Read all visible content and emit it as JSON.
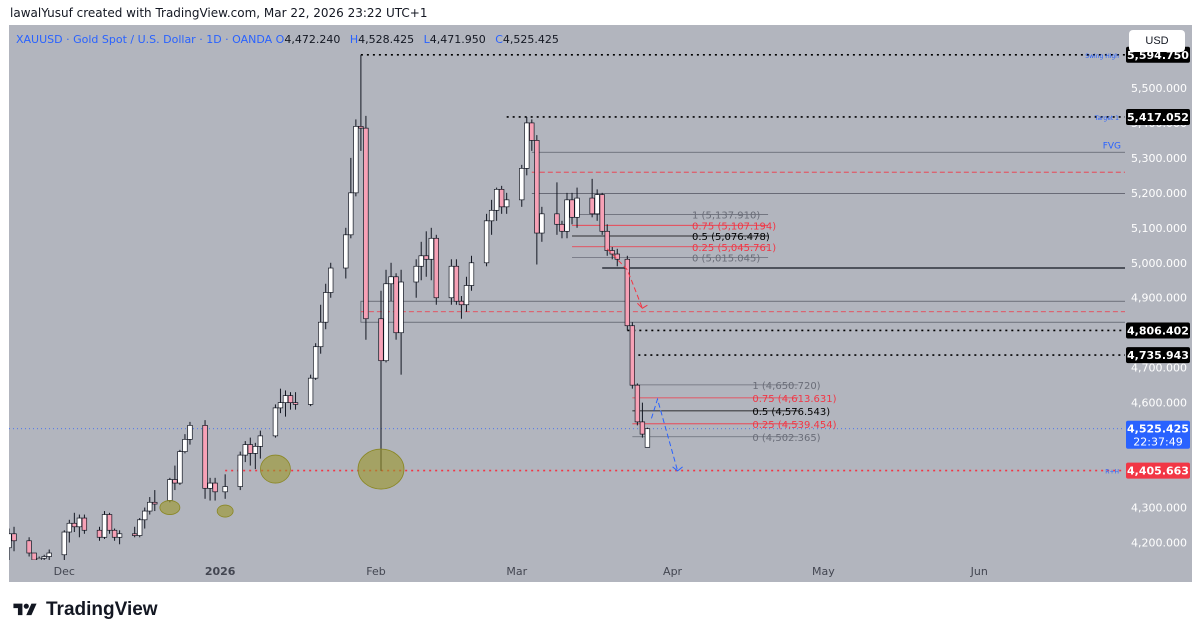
{
  "caption": "lawalYusuf created with TradingView.com, Mar 22, 2026 23:22 UTC+1",
  "legend": {
    "symbol": "XAUUSD · Gold Spot / U.S. Dollar · 1D · OANDA",
    "o_label": "O",
    "o_value": "4,472.240",
    "h_label": "H",
    "h_value": "4,528.425",
    "l_label": "L",
    "l_value": "4,471.950",
    "c_label": "C",
    "c_value": "4,525.425"
  },
  "currency_button": "USD",
  "brand": {
    "name": "TradingView",
    "logo_icon": "tradingview-logo-icon"
  },
  "colors": {
    "background": "#b2b5be",
    "up": "#ffffff",
    "down": "#f7a1b6",
    "wick": "#131722",
    "accent": "#2962ff",
    "red": "#f23645"
  },
  "chart_data": {
    "type": "candlestick",
    "symbol": "XAUUSD",
    "interval": "1D",
    "ylim": [
      4150,
      5680
    ],
    "y_ticks": [
      4200,
      4300,
      4400,
      4500,
      4600,
      4700,
      4800,
      4900,
      5000,
      5100,
      5200,
      5300,
      5400,
      5500
    ],
    "y_tick_labels": [
      "4,200.000",
      "4,300.000",
      "4,400.000",
      "4,500.000",
      "4,600.000",
      "4,700.000",
      "4,800.000",
      "4,900.000",
      "5,000.000",
      "5,100.000",
      "5,200.000",
      "5,300.000",
      "5,400.000",
      "5,500.000"
    ],
    "x_labels": [
      {
        "label": "Dec",
        "date": "2025-12-01"
      },
      {
        "label": "2026",
        "date": "2026-01-01"
      },
      {
        "label": "Feb",
        "date": "2026-02-01"
      },
      {
        "label": "Mar",
        "date": "2026-03-01"
      },
      {
        "label": "Apr",
        "date": "2026-04-01"
      },
      {
        "label": "May",
        "date": "2026-05-01"
      },
      {
        "label": "Jun",
        "date": "2026-06-01"
      }
    ],
    "x_range": [
      "2025-11-20",
      "2026-06-30"
    ],
    "candles": [
      {
        "d": "2025-11-20",
        "o": 4185,
        "h": 4240,
        "l": 4150,
        "c": 4225
      },
      {
        "d": "2025-11-21",
        "o": 4225,
        "h": 4245,
        "l": 4175,
        "c": 4205
      },
      {
        "d": "2025-11-24",
        "o": 4205,
        "h": 4215,
        "l": 4160,
        "c": 4170
      },
      {
        "d": "2025-11-25",
        "o": 4170,
        "h": 4165,
        "l": 4140,
        "c": 4150
      },
      {
        "d": "2025-11-26",
        "o": 4150,
        "h": 4160,
        "l": 4140,
        "c": 4155
      },
      {
        "d": "2025-11-27",
        "o": 4155,
        "h": 4165,
        "l": 4145,
        "c": 4160
      },
      {
        "d": "2025-11-28",
        "o": 4160,
        "h": 4180,
        "l": 4150,
        "c": 4170
      },
      {
        "d": "2025-12-01",
        "o": 4165,
        "h": 4235,
        "l": 4145,
        "c": 4230
      },
      {
        "d": "2025-12-02",
        "o": 4230,
        "h": 4265,
        "l": 4200,
        "c": 4255
      },
      {
        "d": "2025-12-03",
        "o": 4255,
        "h": 4285,
        "l": 4230,
        "c": 4245
      },
      {
        "d": "2025-12-04",
        "o": 4245,
        "h": 4280,
        "l": 4215,
        "c": 4270
      },
      {
        "d": "2025-12-05",
        "o": 4270,
        "h": 4280,
        "l": 4225,
        "c": 4235
      },
      {
        "d": "2025-12-08",
        "o": 4235,
        "h": 4245,
        "l": 4205,
        "c": 4215
      },
      {
        "d": "2025-12-09",
        "o": 4215,
        "h": 4290,
        "l": 4210,
        "c": 4280
      },
      {
        "d": "2025-12-10",
        "o": 4280,
        "h": 4285,
        "l": 4225,
        "c": 4235
      },
      {
        "d": "2025-12-11",
        "o": 4235,
        "h": 4240,
        "l": 4205,
        "c": 4215
      },
      {
        "d": "2025-12-12",
        "o": 4215,
        "h": 4235,
        "l": 4195,
        "c": 4225
      },
      {
        "d": "2025-12-15",
        "o": 4225,
        "h": 4245,
        "l": 4215,
        "c": 4220
      },
      {
        "d": "2025-12-16",
        "o": 4220,
        "h": 4270,
        "l": 4215,
        "c": 4265
      },
      {
        "d": "2025-12-17",
        "o": 4265,
        "h": 4300,
        "l": 4240,
        "c": 4290
      },
      {
        "d": "2025-12-18",
        "o": 4290,
        "h": 4330,
        "l": 4280,
        "c": 4315
      },
      {
        "d": "2025-12-19",
        "o": 4315,
        "h": 4350,
        "l": 4290,
        "c": 4310
      },
      {
        "d": "2025-12-22",
        "o": 4320,
        "h": 4385,
        "l": 4315,
        "c": 4380
      },
      {
        "d": "2025-12-23",
        "o": 4380,
        "h": 4420,
        "l": 4350,
        "c": 4370
      },
      {
        "d": "2025-12-24",
        "o": 4370,
        "h": 4465,
        "l": 4365,
        "c": 4460
      },
      {
        "d": "2025-12-25",
        "o": 4460,
        "h": 4510,
        "l": 4455,
        "c": 4495
      },
      {
        "d": "2025-12-26",
        "o": 4495,
        "h": 4545,
        "l": 4480,
        "c": 4535
      },
      {
        "d": "2025-12-29",
        "o": 4535,
        "h": 4550,
        "l": 4325,
        "c": 4355
      },
      {
        "d": "2025-12-30",
        "o": 4355,
        "h": 4385,
        "l": 4320,
        "c": 4370
      },
      {
        "d": "2025-12-31",
        "o": 4370,
        "h": 4385,
        "l": 4320,
        "c": 4345
      },
      {
        "d": "2026-01-02",
        "o": 4345,
        "h": 4395,
        "l": 4325,
        "c": 4360
      },
      {
        "d": "2026-01-05",
        "o": 4360,
        "h": 4460,
        "l": 4350,
        "c": 4450
      },
      {
        "d": "2026-01-06",
        "o": 4450,
        "h": 4490,
        "l": 4430,
        "c": 4480
      },
      {
        "d": "2026-01-07",
        "o": 4480,
        "h": 4500,
        "l": 4420,
        "c": 4455
      },
      {
        "d": "2026-01-08",
        "o": 4455,
        "h": 4485,
        "l": 4410,
        "c": 4475
      },
      {
        "d": "2026-01-09",
        "o": 4475,
        "h": 4520,
        "l": 4440,
        "c": 4505
      },
      {
        "d": "2026-01-12",
        "o": 4505,
        "h": 4595,
        "l": 4500,
        "c": 4585
      },
      {
        "d": "2026-01-13",
        "o": 4585,
        "h": 4640,
        "l": 4570,
        "c": 4600
      },
      {
        "d": "2026-01-14",
        "o": 4600,
        "h": 4635,
        "l": 4560,
        "c": 4620
      },
      {
        "d": "2026-01-15",
        "o": 4620,
        "h": 4630,
        "l": 4580,
        "c": 4600
      },
      {
        "d": "2026-01-16",
        "o": 4600,
        "h": 4630,
        "l": 4580,
        "c": 4595
      },
      {
        "d": "2026-01-19",
        "o": 4595,
        "h": 4680,
        "l": 4590,
        "c": 4670
      },
      {
        "d": "2026-01-20",
        "o": 4670,
        "h": 4770,
        "l": 4665,
        "c": 4760
      },
      {
        "d": "2026-01-21",
        "o": 4760,
        "h": 4880,
        "l": 4740,
        "c": 4830
      },
      {
        "d": "2026-01-22",
        "o": 4830,
        "h": 4940,
        "l": 4810,
        "c": 4915
      },
      {
        "d": "2026-01-23",
        "o": 4915,
        "h": 5000,
        "l": 4900,
        "c": 4985
      },
      {
        "d": "2026-01-26",
        "o": 4985,
        "h": 5100,
        "l": 4955,
        "c": 5080
      },
      {
        "d": "2026-01-27",
        "o": 5080,
        "h": 5300,
        "l": 5070,
        "c": 5200
      },
      {
        "d": "2026-01-28",
        "o": 5200,
        "h": 5410,
        "l": 5190,
        "c": 5390
      },
      {
        "d": "2026-01-29",
        "o": 5390,
        "h": 5594.75,
        "l": 5320,
        "c": 5385
      },
      {
        "d": "2026-01-30",
        "o": 5385,
        "h": 5420,
        "l": 4780,
        "c": 4840
      },
      {
        "d": "2026-02-02",
        "o": 4840,
        "h": 4920,
        "l": 4405,
        "c": 4720
      },
      {
        "d": "2026-02-03",
        "o": 4720,
        "h": 4980,
        "l": 4715,
        "c": 4940
      },
      {
        "d": "2026-02-04",
        "o": 4940,
        "h": 5000,
        "l": 4890,
        "c": 4960
      },
      {
        "d": "2026-02-05",
        "o": 4960,
        "h": 4970,
        "l": 4780,
        "c": 4800
      },
      {
        "d": "2026-02-06",
        "o": 4800,
        "h": 4980,
        "l": 4680,
        "c": 4945
      },
      {
        "d": "2026-02-09",
        "o": 4945,
        "h": 5010,
        "l": 4900,
        "c": 4990
      },
      {
        "d": "2026-02-10",
        "o": 4990,
        "h": 5060,
        "l": 4950,
        "c": 5020
      },
      {
        "d": "2026-02-11",
        "o": 5020,
        "h": 5090,
        "l": 4960,
        "c": 5010
      },
      {
        "d": "2026-02-12",
        "o": 5010,
        "h": 5100,
        "l": 4950,
        "c": 5070
      },
      {
        "d": "2026-02-13",
        "o": 5070,
        "h": 5080,
        "l": 4880,
        "c": 4900
      },
      {
        "d": "2026-02-16",
        "o": 4900,
        "h": 5010,
        "l": 4880,
        "c": 4990
      },
      {
        "d": "2026-02-17",
        "o": 4990,
        "h": 5010,
        "l": 4880,
        "c": 4890
      },
      {
        "d": "2026-02-18",
        "o": 4890,
        "h": 4905,
        "l": 4840,
        "c": 4880
      },
      {
        "d": "2026-02-19",
        "o": 4880,
        "h": 4960,
        "l": 4860,
        "c": 4935
      },
      {
        "d": "2026-02-20",
        "o": 4935,
        "h": 5020,
        "l": 4920,
        "c": 5000
      },
      {
        "d": "2026-02-23",
        "o": 5000,
        "h": 5140,
        "l": 4990,
        "c": 5120
      },
      {
        "d": "2026-02-24",
        "o": 5120,
        "h": 5180,
        "l": 5080,
        "c": 5150
      },
      {
        "d": "2026-02-25",
        "o": 5150,
        "h": 5215,
        "l": 5120,
        "c": 5210
      },
      {
        "d": "2026-02-26",
        "o": 5210,
        "h": 5220,
        "l": 5140,
        "c": 5160
      },
      {
        "d": "2026-02-27",
        "o": 5160,
        "h": 5200,
        "l": 5140,
        "c": 5180
      },
      {
        "d": "2026-03-02",
        "o": 5180,
        "h": 5280,
        "l": 5160,
        "c": 5270
      },
      {
        "d": "2026-03-03",
        "o": 5270,
        "h": 5417.05,
        "l": 5250,
        "c": 5400
      },
      {
        "d": "2026-03-04",
        "o": 5400,
        "h": 5410,
        "l": 5320,
        "c": 5350
      },
      {
        "d": "2026-03-05",
        "o": 5350,
        "h": 5365,
        "l": 4995,
        "c": 5085
      },
      {
        "d": "2026-03-06",
        "o": 5085,
        "h": 5160,
        "l": 5060,
        "c": 5140
      },
      {
        "d": "2026-03-09",
        "o": 5140,
        "h": 5230,
        "l": 5080,
        "c": 5110
      },
      {
        "d": "2026-03-10",
        "o": 5110,
        "h": 5120,
        "l": 5070,
        "c": 5090
      },
      {
        "d": "2026-03-11",
        "o": 5090,
        "h": 5200,
        "l": 5070,
        "c": 5180
      },
      {
        "d": "2026-03-12",
        "o": 5180,
        "h": 5200,
        "l": 5110,
        "c": 5130
      },
      {
        "d": "2026-03-13",
        "o": 5130,
        "h": 5215,
        "l": 5100,
        "c": 5185
      },
      {
        "d": "2026-03-16",
        "o": 5185,
        "h": 5240,
        "l": 5130,
        "c": 5140
      },
      {
        "d": "2026-03-17",
        "o": 5140,
        "h": 5210,
        "l": 5120,
        "c": 5195
      },
      {
        "d": "2026-03-18",
        "o": 5195,
        "h": 5200,
        "l": 5080,
        "c": 5090
      },
      {
        "d": "2026-03-19",
        "o": 5090,
        "h": 5110,
        "l": 5020,
        "c": 5035
      },
      {
        "d": "2026-03-20",
        "o": 5035,
        "h": 5045,
        "l": 5010,
        "c": 5025
      },
      {
        "d": "2026-03-21",
        "o": 5025,
        "h": 5040,
        "l": 4990,
        "c": 5010
      },
      {
        "d": "2026-03-23",
        "o": 5010,
        "h": 5020,
        "l": 4806.4,
        "c": 4820
      },
      {
        "d": "2026-03-24",
        "o": 4820,
        "h": 4830,
        "l": 4640,
        "c": 4650
      },
      {
        "d": "2026-03-25",
        "o": 4650,
        "h": 4655,
        "l": 4535,
        "c": 4545
      },
      {
        "d": "2026-03-26",
        "o": 4545,
        "h": 4600,
        "l": 4500,
        "c": 4510
      },
      {
        "d": "2026-03-27",
        "o": 4472.24,
        "h": 4528.425,
        "l": 4471.95,
        "c": 4525.425
      }
    ],
    "levels": [
      {
        "name": "Swing High",
        "price": 5594.75,
        "label": "5,594.750",
        "style": "dotted",
        "color": "#000000"
      },
      {
        "name": "Target 1",
        "price": 5417.052,
        "label": "5,417.052",
        "style": "dotted",
        "color": "#000000"
      },
      {
        "name": "",
        "price": 4806.402,
        "label": "4,806.402",
        "style": "dotted",
        "color": "#000000"
      },
      {
        "name": "",
        "price": 4735.943,
        "label": "4,735.943",
        "style": "dotted",
        "color": "#000000"
      },
      {
        "name": "R+H",
        "price": 4405.663,
        "label": "4,405.663",
        "style": "dotted",
        "color": "#f23645"
      },
      {
        "name": "",
        "price": 4525.425,
        "label": "4,525.425",
        "style": "dotted",
        "color": "#2962ff"
      }
    ],
    "fvg": {
      "label": "FVG",
      "top": 5316,
      "mid": 5259,
      "bottom": 5198,
      "zone_top": 4890,
      "zone_mid": 4860,
      "zone_bottom": 4830,
      "level_4985": 4985
    },
    "fib_upper": [
      {
        "label": "1 (5,137.910)",
        "price": 5137.91,
        "color": "#6a6d78"
      },
      {
        "label": "0.75 (5,107.194)",
        "price": 5107.194,
        "color": "#f23645"
      },
      {
        "label": "0.5 (5,076.478)",
        "price": 5076.478,
        "color": "#000000"
      },
      {
        "label": "0.25 (5,045.761)",
        "price": 5045.761,
        "color": "#f23645"
      },
      {
        "label": "0 (5,015.045)",
        "price": 5015.045,
        "color": "#6a6d78"
      }
    ],
    "fib_lower": [
      {
        "label": "1 (4,650.720)",
        "price": 4650.72,
        "color": "#6a6d78"
      },
      {
        "label": "0.75 (4,613.631)",
        "price": 4613.631,
        "color": "#f23645"
      },
      {
        "label": "0.5 (4,576.543)",
        "price": 4576.543,
        "color": "#000000"
      },
      {
        "label": "0.25 (4,539.454)",
        "price": 4539.454,
        "color": "#f23645"
      },
      {
        "label": "0 (4,502.365)",
        "price": 4502.365,
        "color": "#6a6d78"
      }
    ],
    "countdown": "22:37:49"
  }
}
